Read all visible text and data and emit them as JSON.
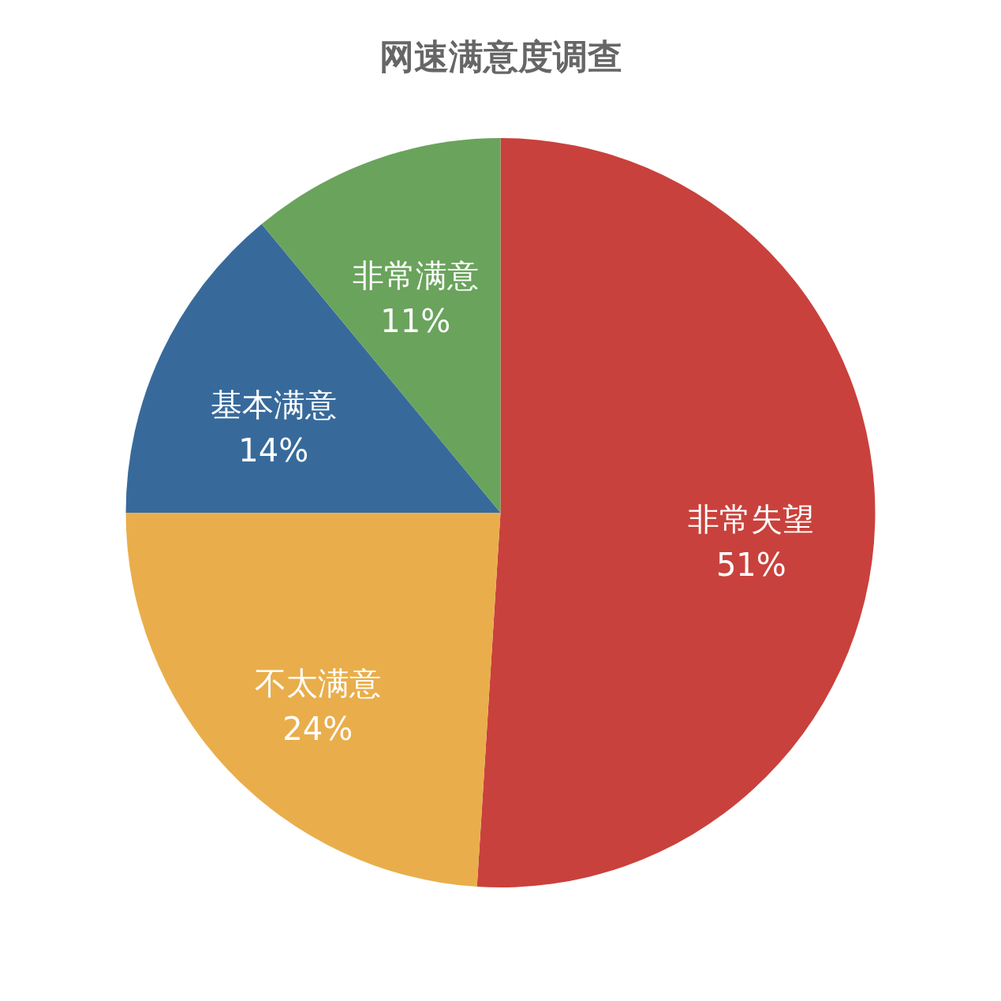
{
  "chart_data": {
    "type": "pie",
    "title": "网速满意度调查",
    "categories": [
      "非常失望",
      "不太满意",
      "基本满意",
      "非常满意"
    ],
    "values": [
      51,
      24,
      14,
      11
    ],
    "colors": [
      "#c9413c",
      "#e9ae4b",
      "#376a9b",
      "#6aa35c"
    ],
    "value_labels": [
      "51%",
      "24%",
      "14%",
      "11%"
    ]
  }
}
